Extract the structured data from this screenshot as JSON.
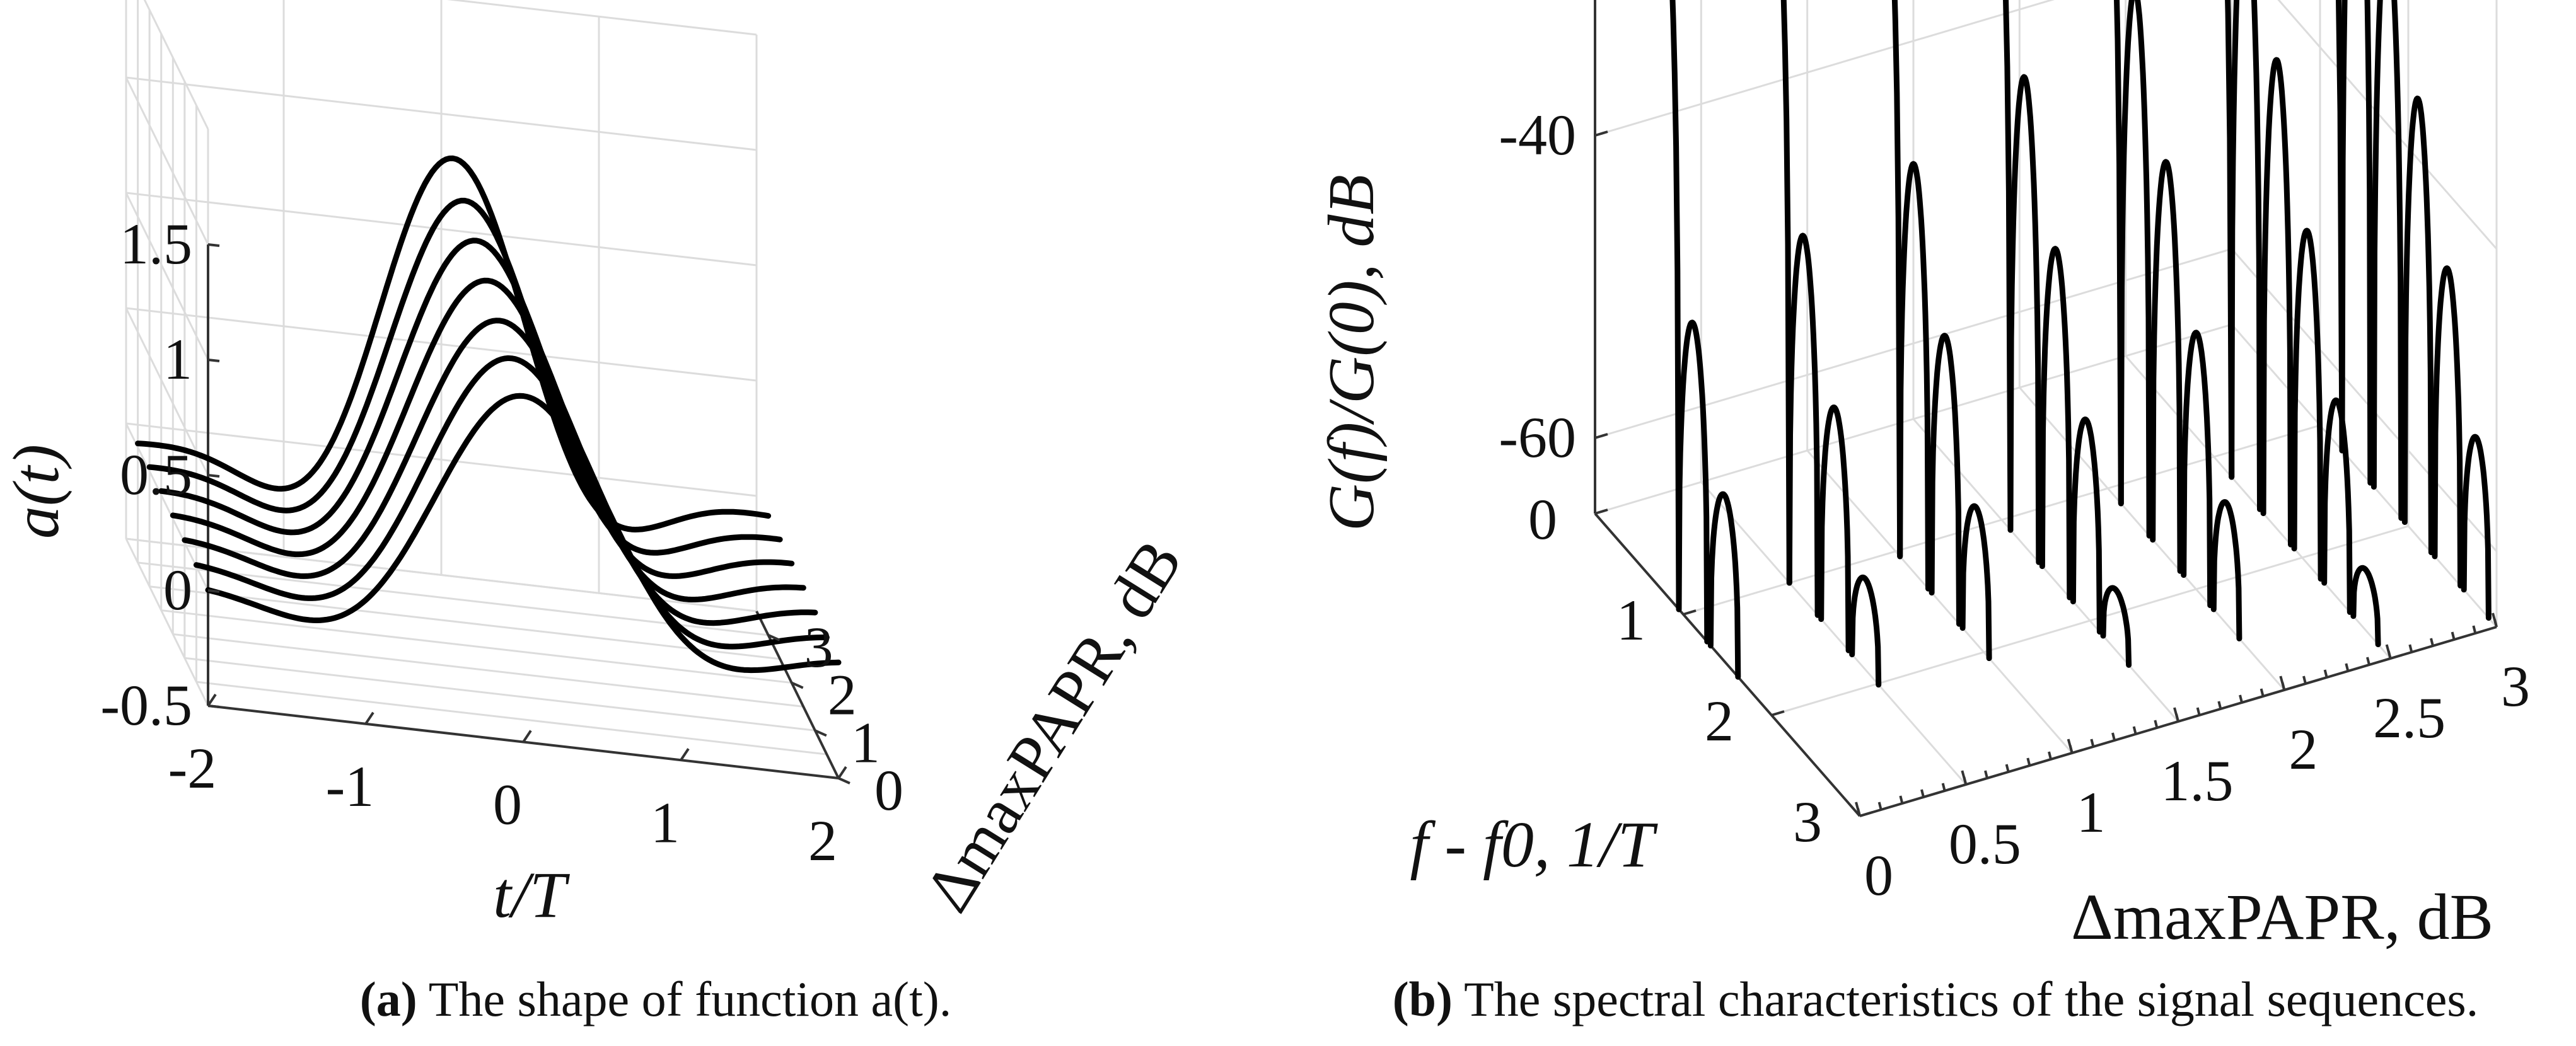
{
  "chart_data": [
    {
      "type": "line",
      "panel": "a",
      "title": "The shape of function a(t).",
      "xlabel": "t/T",
      "ylabel": "a(t)",
      "zlabel": "ΔmaxPAPR, dB",
      "x_ticks": [
        "-2",
        "-1",
        "0",
        "1",
        "2"
      ],
      "y_ticks": [
        "-0.5",
        "0",
        "0.5",
        "1",
        "1.5"
      ],
      "z_ticks": [
        "0",
        "1",
        "2",
        "3"
      ],
      "xlim": [
        -2,
        2
      ],
      "ylim": [
        -0.5,
        1.5
      ],
      "zlim": [
        0,
        3.5
      ],
      "grid": true,
      "series": [
        {
          "name": "ΔmaxPAPR = 0 dB",
          "dmaxpapr": 0.0,
          "peak": 1.0,
          "width": 1.0
        },
        {
          "name": "ΔmaxPAPR = 0.5 dB",
          "dmaxpapr": 0.5,
          "peak": 1.06,
          "width": 0.97
        },
        {
          "name": "ΔmaxPAPR = 1 dB",
          "dmaxpapr": 1.0,
          "peak": 1.12,
          "width": 0.94
        },
        {
          "name": "ΔmaxPAPR = 1.5 dB",
          "dmaxpapr": 1.5,
          "peak": 1.19,
          "width": 0.91
        },
        {
          "name": "ΔmaxPAPR = 2 dB",
          "dmaxpapr": 2.0,
          "peak": 1.26,
          "width": 0.88
        },
        {
          "name": "ΔmaxPAPR = 2.5 dB",
          "dmaxpapr": 2.5,
          "peak": 1.33,
          "width": 0.85
        },
        {
          "name": "ΔmaxPAPR = 3 dB",
          "dmaxpapr": 3.0,
          "peak": 1.41,
          "width": 0.82
        }
      ]
    },
    {
      "type": "line",
      "panel": "b",
      "title": "The spectral characteristics of the signal sequences.",
      "xlabel": "f - f0, 1/T",
      "ylabel": "G(f)/G(0), dB",
      "zlabel": "ΔmaxPAPR, dB",
      "x_ticks": [
        "0",
        "1",
        "2",
        "3"
      ],
      "y_ticks": [
        "0",
        "-20",
        "-40",
        "-60"
      ],
      "z_ticks": [
        "0",
        "0.5",
        "1",
        "1.5",
        "2",
        "2.5",
        "3"
      ],
      "xlim": [
        0,
        3
      ],
      "ylim": [
        -65,
        0
      ],
      "zlim": [
        0,
        3
      ],
      "grid": true,
      "series": [
        {
          "name": "ΔmaxPAPR = 0 dB",
          "dmaxpapr": 0.0,
          "mainlobe_width": 0.95,
          "sidelobe_level_db": -45
        },
        {
          "name": "ΔmaxPAPR = 0.5 dB",
          "dmaxpapr": 0.5,
          "mainlobe_width": 1.0,
          "sidelobe_level_db": -41
        },
        {
          "name": "ΔmaxPAPR = 1 dB",
          "dmaxpapr": 1.0,
          "mainlobe_width": 1.05,
          "sidelobe_level_db": -38
        },
        {
          "name": "ΔmaxPAPR = 1.5 dB",
          "dmaxpapr": 1.5,
          "mainlobe_width": 1.1,
          "sidelobe_level_db": -34
        },
        {
          "name": "ΔmaxPAPR = 2 dB",
          "dmaxpapr": 2.0,
          "mainlobe_width": 1.15,
          "sidelobe_level_db": -30
        },
        {
          "name": "ΔmaxPAPR = 2.5 dB",
          "dmaxpapr": 2.5,
          "mainlobe_width": 1.2,
          "sidelobe_level_db": -25
        },
        {
          "name": "ΔmaxPAPR = 3 dB",
          "dmaxpapr": 3.0,
          "mainlobe_width": 1.25,
          "sidelobe_level_db": -18
        }
      ]
    }
  ]
}
